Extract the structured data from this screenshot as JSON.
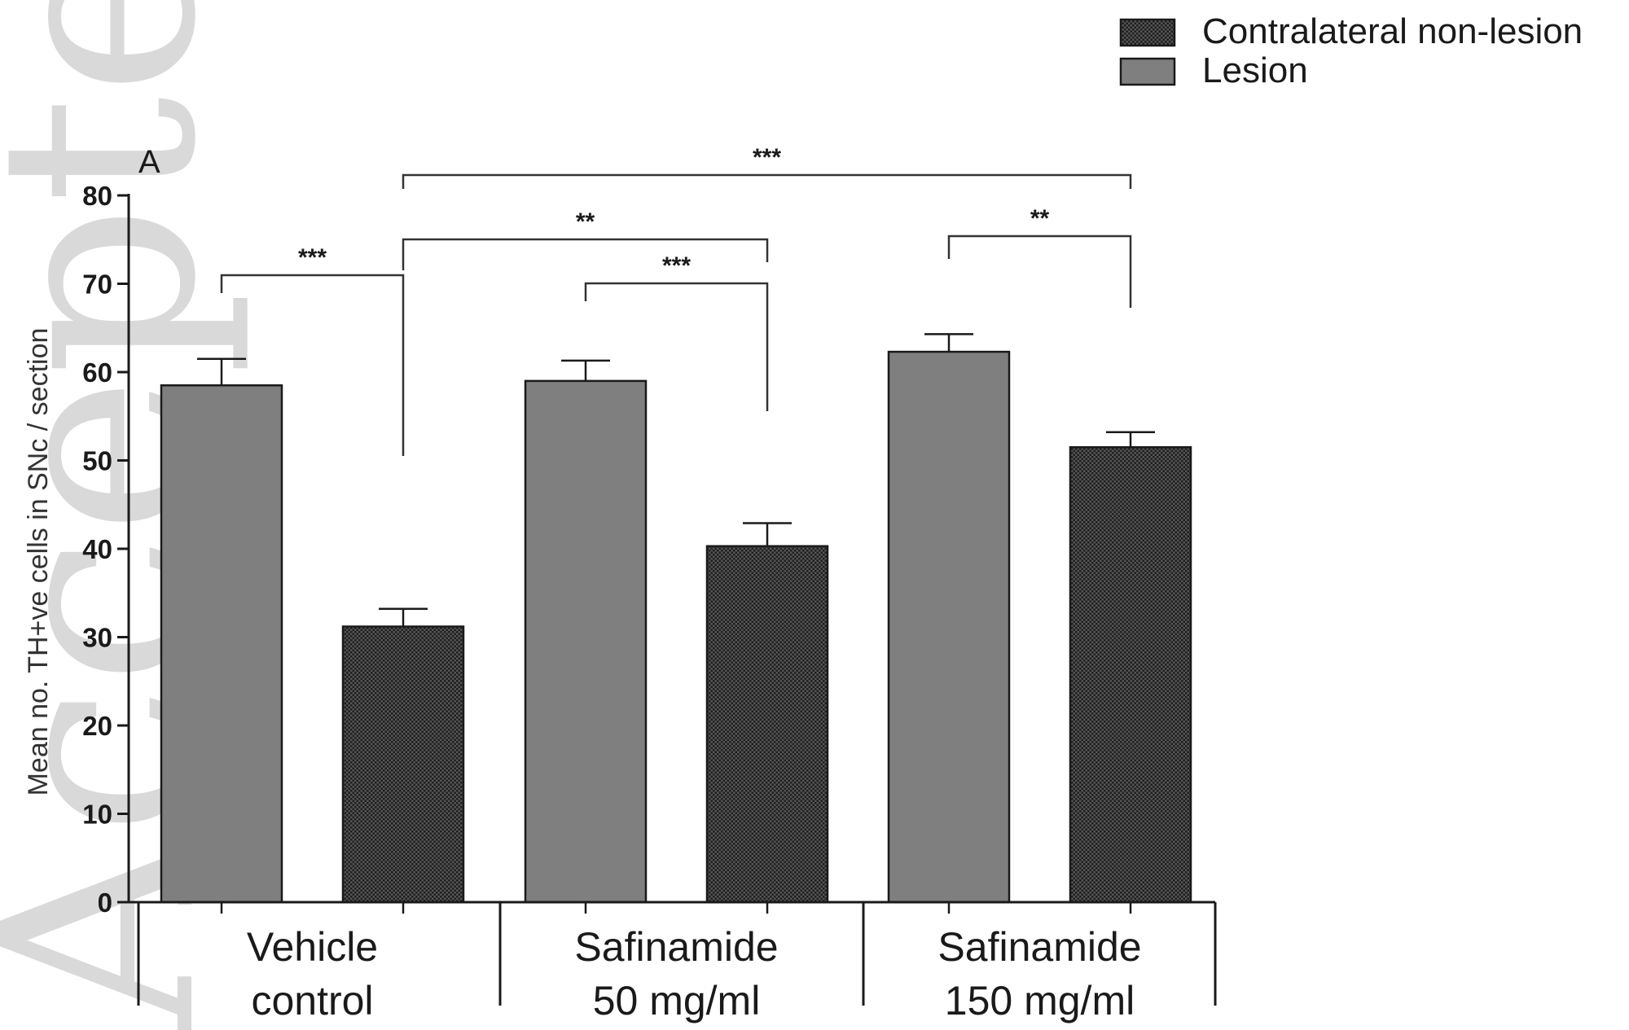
{
  "watermark": "Accepted Article",
  "chart_data": {
    "type": "bar",
    "panel_label": "A",
    "ylabel": "Mean no. TH+ve cells in SNc / section",
    "xlabel": "",
    "ylim": [
      0,
      80
    ],
    "yticks": [
      0,
      10,
      20,
      30,
      40,
      50,
      60,
      70,
      80
    ],
    "grid": false,
    "legend_position": "top-right",
    "categories": [
      {
        "lines": [
          "Vehicle",
          "control"
        ]
      },
      {
        "lines": [
          "Safinamide",
          "50 mg/ml"
        ]
      },
      {
        "lines": [
          "Safinamide",
          "150 mg/ml"
        ]
      }
    ],
    "series": [
      {
        "name": "Lesion",
        "color": "#7f7f7f",
        "pattern": "solid",
        "values": [
          58.5,
          59,
          62.3
        ],
        "errors": [
          3,
          2.3,
          2
        ]
      },
      {
        "name": "Contralateral non-lesion",
        "color": "#404040",
        "pattern": "dotted",
        "values": [
          31.2,
          40.3,
          51.5
        ],
        "errors": [
          2,
          2.6,
          1.7
        ]
      }
    ],
    "legend_order": [
      1,
      0
    ],
    "significance": [
      {
        "label": "***",
        "from": [
          0,
          0
        ],
        "to": [
          0,
          1
        ]
      },
      {
        "label": "**",
        "from": [
          0,
          1
        ],
        "to": [
          1,
          1
        ]
      },
      {
        "label": "***",
        "from": [
          1,
          0
        ],
        "to": [
          1,
          1
        ]
      },
      {
        "label": "***",
        "from": [
          0,
          1
        ],
        "to": [
          2,
          1
        ]
      },
      {
        "label": "**",
        "from": [
          2,
          0
        ],
        "to": [
          2,
          1
        ]
      }
    ]
  }
}
